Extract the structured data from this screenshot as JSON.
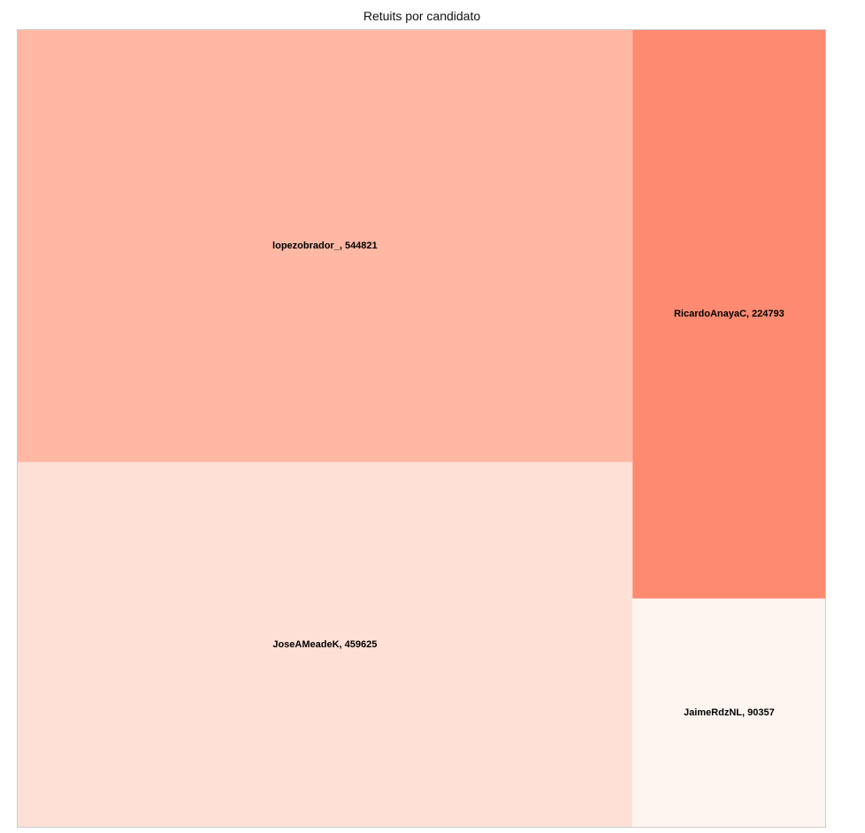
{
  "chart_data": {
    "type": "treemap",
    "title": "Retuits por candidato",
    "items": [
      {
        "name": "lopezobrador_",
        "value": 544821,
        "label": "lopezobrador_, 544821",
        "color": "#feb8a4"
      },
      {
        "name": "JoseAMeadeK",
        "value": 459625,
        "label": "JoseAMeadeK, 459625",
        "color": "#fee0d6"
      },
      {
        "name": "RicardoAnayaC",
        "value": 224793,
        "label": "RicardoAnayaC, 224793",
        "color": "#fe8b71"
      },
      {
        "name": "JaimeRdzNL",
        "value": 90357,
        "label": "JaimeRdzNL, 90357",
        "color": "#fff5f0"
      }
    ],
    "border_color": "#cccccc"
  }
}
